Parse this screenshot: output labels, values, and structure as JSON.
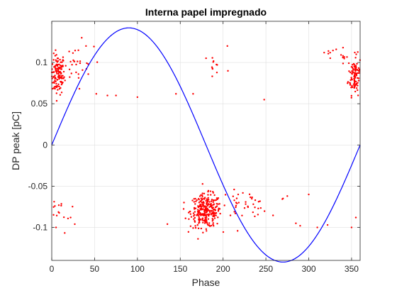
{
  "chart_data": {
    "type": "scatter",
    "title": "Interna papel impregnado",
    "xlabel": "Phase",
    "ylabel": "DP peak [pC]",
    "xlim": [
      0,
      360
    ],
    "ylim": [
      -0.14,
      0.15
    ],
    "xticks": [
      0,
      50,
      100,
      150,
      200,
      250,
      300,
      350
    ],
    "xtick_labels": [
      "0",
      "50",
      "100",
      "150",
      "200",
      "250",
      "300",
      "350"
    ],
    "yticks": [
      -0.1,
      -0.05,
      0,
      0.05,
      0.1
    ],
    "ytick_labels": [
      "-0.1",
      "-0.05",
      "0",
      "0.05",
      "0.1"
    ],
    "grid": true,
    "reference_curve": {
      "type": "sine",
      "amplitude": 0.142,
      "period_deg": 360,
      "color": "#0000ff"
    },
    "scatter_color": "#ff0000",
    "clusters": [
      {
        "x_center": 7,
        "x_spread": 4,
        "y_center": 0.085,
        "y_spread": 0.012,
        "count": 130
      },
      {
        "x_center": 354,
        "x_spread": 4,
        "y_center": 0.085,
        "y_spread": 0.012,
        "count": 110
      },
      {
        "x_center": 180,
        "x_spread": 9,
        "y_center": -0.08,
        "y_spread": 0.01,
        "count": 280
      },
      {
        "x_center": 225,
        "x_spread": 14,
        "y_center": -0.072,
        "y_spread": 0.008,
        "count": 40
      },
      {
        "x_center": 25,
        "x_spread": 12,
        "y_center": 0.095,
        "y_spread": 0.012,
        "count": 30
      },
      {
        "x_center": 8,
        "x_spread": 10,
        "y_center": -0.085,
        "y_spread": 0.012,
        "count": 20
      },
      {
        "x_center": 190,
        "x_spread": 9,
        "y_center": 0.095,
        "y_spread": 0.012,
        "count": 12
      },
      {
        "x_center": 335,
        "x_spread": 12,
        "y_center": 0.11,
        "y_spread": 0.006,
        "count": 12
      }
    ],
    "points": [
      [
        35,
        0.13
      ],
      [
        40,
        0.12
      ],
      [
        100,
        0.058
      ],
      [
        65,
        0.06
      ],
      [
        75,
        0.06
      ],
      [
        52,
        0.062
      ],
      [
        145,
        0.062
      ],
      [
        165,
        0.062
      ],
      [
        205,
        0.12
      ],
      [
        248,
        0.055
      ],
      [
        135,
        -0.096
      ],
      [
        355,
        -0.088
      ],
      [
        350,
        -0.1
      ],
      [
        322,
        -0.097
      ],
      [
        285,
        -0.095
      ],
      [
        290,
        -0.098
      ],
      [
        310,
        -0.1
      ],
      [
        270,
        -0.065
      ],
      [
        275,
        -0.062
      ],
      [
        300,
        -0.06
      ],
      [
        318,
        0.112
      ],
      [
        325,
        0.112
      ],
      [
        340,
        0.108
      ],
      [
        5,
        -0.1
      ],
      [
        22,
        -0.088
      ]
    ]
  }
}
